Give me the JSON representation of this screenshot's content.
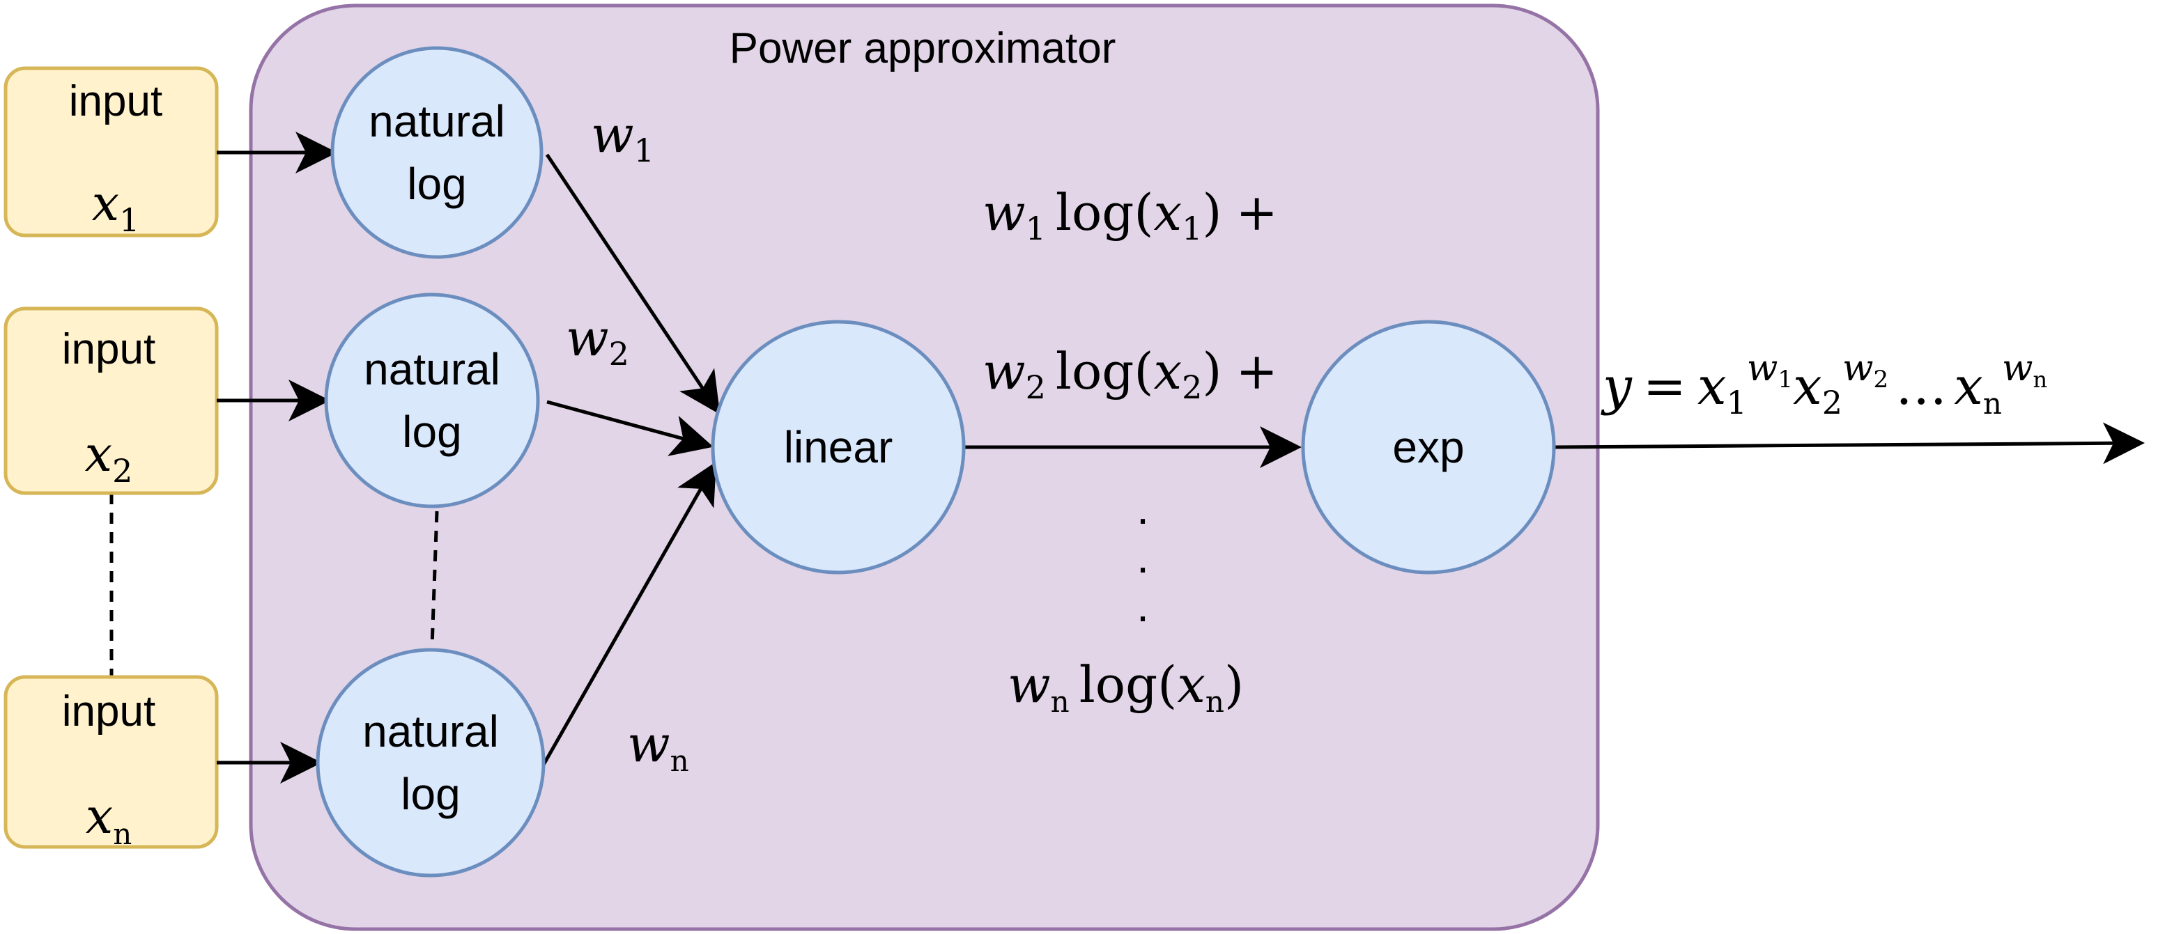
{
  "title": "Power approximator",
  "colors": {
    "container_fill": "#e1d5e7",
    "container_stroke": "#9673a6",
    "input_fill": "#fff2cc",
    "input_stroke": "#d6b656",
    "node_fill": "#dae8fc",
    "node_stroke": "#6c8ebf",
    "edge": "#000000"
  },
  "inputs": [
    {
      "label": "input",
      "var": "x",
      "sub": "1"
    },
    {
      "label": "input",
      "var": "x",
      "sub": "2"
    },
    {
      "label": "input",
      "var": "x",
      "sub": "n"
    }
  ],
  "log_nodes": [
    {
      "line1": "natural",
      "line2": "log"
    },
    {
      "line1": "natural",
      "line2": "log"
    },
    {
      "line1": "natural",
      "line2": "log"
    }
  ],
  "weights": [
    {
      "var": "w",
      "sub": "1"
    },
    {
      "var": "w",
      "sub": "2"
    },
    {
      "var": "w",
      "sub": "n"
    }
  ],
  "linear_label": "linear",
  "exp_label": "exp",
  "terms": [
    {
      "w": "w",
      "w_sub": "1",
      "fn": "log",
      "x": "x",
      "x_sub": "1",
      "suffix": "+"
    },
    {
      "w": "w",
      "w_sub": "2",
      "fn": "log",
      "x": "x",
      "x_sub": "2",
      "suffix": "+"
    },
    {
      "w": "w",
      "w_sub": "n",
      "fn": "log",
      "x": "x",
      "x_sub": "n",
      "suffix": ""
    }
  ],
  "vertical_dots": ".",
  "output": {
    "lhs": "y",
    "eq": "=",
    "factors": [
      {
        "base": "x",
        "sub": "1",
        "exp": "w",
        "exp_sub": "1"
      },
      {
        "base": "x",
        "sub": "2",
        "exp": "w",
        "exp_sub": "2"
      }
    ],
    "ellipsis": "…",
    "last": {
      "base": "x",
      "sub": "n",
      "exp": "w",
      "exp_sub": "n"
    }
  }
}
